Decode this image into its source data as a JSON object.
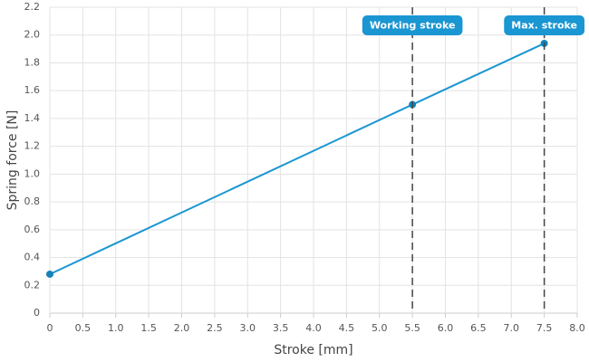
{
  "chart_data": {
    "type": "line",
    "xlabel": "Stroke [mm]",
    "ylabel": "Spring force [N]",
    "x": [
      0,
      5.5,
      7.5
    ],
    "series": [
      {
        "color": "#1a96d2",
        "values": [
          0.28,
          1.5,
          1.94
        ]
      }
    ],
    "xlim": [
      0,
      8
    ],
    "xticks": [
      0,
      0.5,
      {
        "value": 1,
        "label": "1.0"
      },
      1.5,
      {
        "value": 2,
        "label": "2.0"
      },
      2.5,
      {
        "value": 3,
        "label": "3.0"
      },
      3.5,
      {
        "value": 4,
        "label": "4.0"
      },
      4.5,
      {
        "value": 5,
        "label": "5.0"
      },
      5.5,
      {
        "value": 6,
        "label": "6.0"
      },
      6.5,
      {
        "value": 7,
        "label": "7.0"
      },
      7.5,
      {
        "value": 8,
        "label": "8.0"
      }
    ],
    "ylim": [
      0,
      2.2
    ],
    "yticks": [
      0,
      0.2,
      0.4,
      0.6,
      0.8,
      {
        "value": 1,
        "label": "1.0"
      },
      1.2,
      1.4,
      1.6,
      1.8,
      {
        "value": 2,
        "label": "2.0"
      },
      2.2
    ],
    "grid": true,
    "annotations": [
      {
        "x": 5.5,
        "label": "Working stroke"
      },
      {
        "x": 7.5,
        "label": "Max. stroke"
      }
    ]
  }
}
